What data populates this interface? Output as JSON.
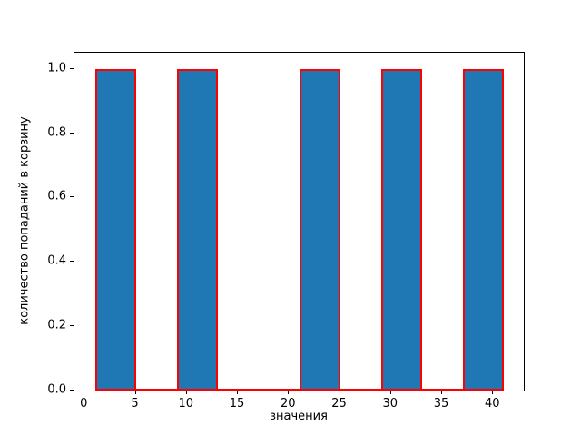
{
  "chart_data": {
    "type": "bar",
    "subtype": "histogram",
    "title": "",
    "xlabel": "значения",
    "ylabel": "количество попаданий в корзину",
    "xlim": [
      -1,
      43
    ],
    "ylim": [
      0,
      1.05
    ],
    "xticks": [
      0,
      5,
      10,
      15,
      20,
      25,
      30,
      35,
      40
    ],
    "xtick_labels": [
      "0",
      "5",
      "10",
      "15",
      "20",
      "25",
      "30",
      "35",
      "40"
    ],
    "yticks": [
      0.0,
      0.2,
      0.4,
      0.6,
      0.8,
      1.0
    ],
    "ytick_labels": [
      "0.0",
      "0.2",
      "0.4",
      "0.6",
      "0.8",
      "1.0"
    ],
    "bin_edges": [
      1,
      5,
      9,
      13,
      17,
      21,
      25,
      29,
      33,
      37,
      41
    ],
    "counts": [
      1,
      0,
      1,
      0,
      0,
      1,
      0,
      1,
      0,
      1
    ],
    "grid": false,
    "legend": null,
    "colors": {
      "bar_fill": "#1f77b4",
      "bar_edge": "#ff0000",
      "spine": "#000000",
      "background": "#ffffff"
    }
  }
}
